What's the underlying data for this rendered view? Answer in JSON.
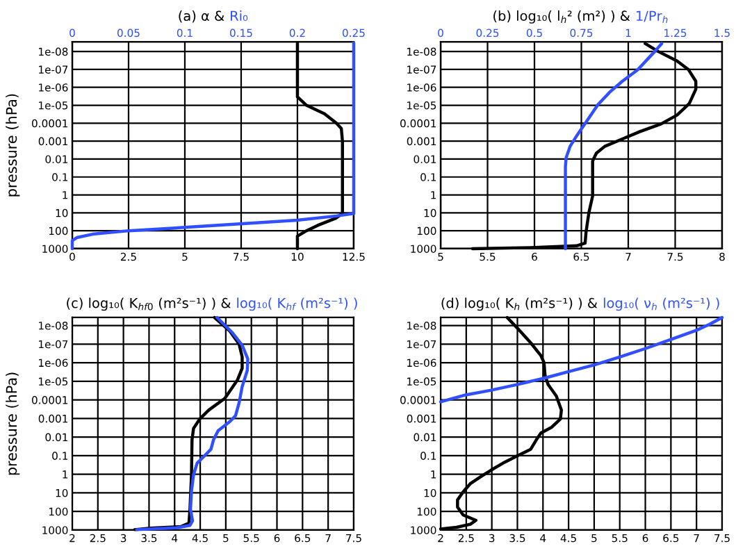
{
  "chart_data": [
    {
      "type": "line",
      "title": "(a) α &",
      "ylabel": "pressure (hPa)",
      "log": "y",
      "grid": true,
      "xlim": [
        0,
        12.5
      ],
      "xticks": [
        0,
        2.5,
        5,
        7.5,
        10,
        12.5
      ],
      "x2lim": [
        0,
        0.25
      ],
      "x2ticks": [
        0,
        0.05,
        0.1,
        0.15,
        0.2,
        0.25
      ],
      "ylim": [
        1000,
        2.9e-09
      ],
      "yticks": [
        {
          "value": 1e-08,
          "label": "1e-08"
        },
        {
          "value": 1e-07,
          "label": "1e-07"
        },
        {
          "value": 1e-06,
          "label": "1e-06"
        },
        {
          "value": 1e-05,
          "label": "1e-05"
        },
        {
          "value": 0.0001,
          "label": "0.0001"
        },
        {
          "value": 0.001,
          "label": "0.001"
        },
        {
          "value": 0.01,
          "label": "0.01"
        },
        {
          "value": 0.1,
          "label": "0.1"
        },
        {
          "value": 1,
          "label": "1"
        },
        {
          "value": 10,
          "label": "10"
        },
        {
          "value": 100,
          "label": "100"
        },
        {
          "value": 1000,
          "label": "1000"
        }
      ],
      "series": [
        {
          "color": "#000000",
          "x": [
            10,
            10,
            10.4,
            11.2,
            11.73,
            11.95,
            12,
            12,
            11.95,
            11.7,
            10.9,
            10.4,
            10,
            10
          ],
          "values": [
            3.3e-09,
            3.4e-06,
            1e-05,
            3e-05,
            0.0001,
            0.0002,
            0.001,
            10,
            12,
            20,
            50,
            100,
            200,
            1000
          ]
        },
        {
          "name": "Ri₀",
          "color": "#3050ff",
          "axis": "x2",
          "x": [
            0.25,
            0.25,
            0.2346,
            0.1995,
            0.1,
            0.05,
            0.018,
            0.004,
            0,
            0
          ],
          "values": [
            3.3e-09,
            11,
            15,
            26,
            65,
            100,
            155,
            240,
            360,
            1000
          ]
        }
      ]
    },
    {
      "type": "line",
      "title": "(b) log₁₀( l$_{h}$² (m²) ) &",
      "log": "y",
      "grid": true,
      "xlim": [
        5,
        8
      ],
      "xticks": [
        5,
        5.5,
        6,
        6.5,
        7,
        7.5,
        8
      ],
      "x2lim": [
        0,
        1.5
      ],
      "x2ticks": [
        0,
        0.25,
        0.5,
        0.75,
        1,
        1.25,
        1.5
      ],
      "ylim": [
        1000,
        2.9e-09
      ],
      "yticks": [
        {
          "value": 1e-08,
          "label": "1e-08"
        },
        {
          "value": 1e-07,
          "label": "1e-07"
        },
        {
          "value": 1e-06,
          "label": "1e-06"
        },
        {
          "value": 1e-05,
          "label": "1e-05"
        },
        {
          "value": 0.0001,
          "label": "0.0001"
        },
        {
          "value": 0.001,
          "label": "0.001"
        },
        {
          "value": 0.01,
          "label": "0.01"
        },
        {
          "value": 0.1,
          "label": "0.1"
        },
        {
          "value": 1,
          "label": "1"
        },
        {
          "value": 10,
          "label": "10"
        },
        {
          "value": 100,
          "label": "100"
        },
        {
          "value": 1000,
          "label": "1000"
        }
      ],
      "series": [
        {
          "color": "#000000",
          "x": [
            7.18,
            7.32,
            7.52,
            7.64,
            7.72,
            7.72,
            7.65,
            7.52,
            7.35,
            7.12,
            6.92,
            6.75,
            6.66,
            6.62,
            6.62,
            6.62,
            6.58,
            6.55,
            6.54,
            6.45,
            5.96,
            5.34
          ],
          "values": [
            3.6e-09,
            1e-08,
            3.4e-08,
            1e-07,
            4.6e-07,
            1.26e-06,
            8.1e-06,
            3.5e-05,
            0.00011,
            0.0003,
            0.00083,
            0.00195,
            0.0047,
            0.0129,
            0.112,
            1.15,
            10,
            115,
            490,
            690,
            870,
            1000
          ]
        },
        {
          "name": "1/Pr$_{h}$",
          "color": "#3050ff",
          "axis": "x2",
          "x": [
            1.178,
            1.141,
            1.049,
            0.968,
            0.9,
            0.838,
            0.777,
            0.727,
            0.69,
            0.669,
            0.665,
            0.665
          ],
          "values": [
            3.6e-09,
            1e-08,
            1.07e-07,
            4.6e-07,
            1.9e-06,
            9.3e-06,
            8.1e-05,
            0.00047,
            0.00195,
            0.0083,
            0.026,
            1000
          ]
        }
      ]
    },
    {
      "type": "line",
      "title": "(c) log₁₀( K$_{hf0}$ (m²s⁻¹) ) &",
      "ylabel": "pressure (hPa)",
      "log": "y",
      "grid": true,
      "xlim": [
        2,
        7.5
      ],
      "xticks": [
        2,
        2.5,
        3,
        3.5,
        4,
        4.5,
        5,
        5.5,
        6,
        6.5,
        7,
        7.5
      ],
      "ylim": [
        1000,
        3.7e-09
      ],
      "yticks": [
        {
          "value": 1e-08,
          "label": "1e-08"
        },
        {
          "value": 1e-07,
          "label": "1e-07"
        },
        {
          "value": 1e-06,
          "label": "1e-06"
        },
        {
          "value": 1e-05,
          "label": "1e-05"
        },
        {
          "value": 0.0001,
          "label": "0.0001"
        },
        {
          "value": 0.001,
          "label": "0.001"
        },
        {
          "value": 0.01,
          "label": "0.01"
        },
        {
          "value": 0.1,
          "label": "0.1"
        },
        {
          "value": 1,
          "label": "1"
        },
        {
          "value": 10,
          "label": "10"
        },
        {
          "value": 100,
          "label": "100"
        },
        {
          "value": 1000,
          "label": "1000"
        }
      ],
      "series": [
        {
          "color": "#000000",
          "x": [
            4.78,
            5.08,
            5.26,
            5.32,
            5.32,
            5.23,
            4.98,
            4.67,
            4.49,
            4.37,
            4.34,
            4.33,
            4.3,
            4.28,
            4.12,
            3.53,
            3.22
          ],
          "values": [
            3.7e-09,
            2e-08,
            1e-07,
            4.8e-07,
            2e-06,
            8.3e-06,
            8.3e-05,
            0.00035,
            0.00107,
            0.0034,
            0.014,
            1.05,
            76,
            430,
            650,
            790,
            950
          ]
        },
        {
          "name": "log₁₀( K$_{hf}$ (m²s⁻¹) )",
          "color": "#3050ff",
          "x": [
            4.83,
            5.12,
            5.32,
            5.43,
            5.42,
            5.32,
            5.26,
            5.19,
            5.08,
            4.85,
            4.76,
            4.71,
            4.58,
            4.44,
            4.37,
            4.33,
            4.31,
            4.35,
            4.3,
            4.03,
            3.26
          ],
          "values": [
            3.7e-09,
            2.3e-08,
            1.15e-07,
            6.3e-07,
            2.6e-06,
            1.95e-05,
            0.000145,
            0.00071,
            0.00145,
            0.0046,
            0.014,
            0.045,
            0.105,
            0.25,
            1.05,
            7.8,
            76,
            316,
            560,
            760,
            950
          ]
        }
      ]
    },
    {
      "type": "line",
      "title": "(d) log₁₀( K$_{h}$ (m²s⁻¹) ) &",
      "log": "y",
      "grid": true,
      "xlim": [
        2,
        7.5
      ],
      "xticks": [
        2,
        2.5,
        3,
        3.5,
        4,
        4.5,
        5,
        5.5,
        6,
        6.5,
        7,
        7.5
      ],
      "ylim": [
        1000,
        3.7e-09
      ],
      "yticks": [
        {
          "value": 1e-08,
          "label": "1e-08"
        },
        {
          "value": 1e-07,
          "label": "1e-07"
        },
        {
          "value": 1e-06,
          "label": "1e-06"
        },
        {
          "value": 1e-05,
          "label": "1e-05"
        },
        {
          "value": 0.0001,
          "label": "0.0001"
        },
        {
          "value": 0.001,
          "label": "0.001"
        },
        {
          "value": 0.01,
          "label": "0.01"
        },
        {
          "value": 0.1,
          "label": "0.1"
        },
        {
          "value": 1,
          "label": "1"
        },
        {
          "value": 10,
          "label": "10"
        },
        {
          "value": 100,
          "label": "100"
        },
        {
          "value": 1000,
          "label": "1000"
        }
      ],
      "series": [
        {
          "color": "#000000",
          "x": [
            3.3,
            3.49,
            3.76,
            3.96,
            4.02,
            4.04,
            4.1,
            4.26,
            4.36,
            4.34,
            4.17,
            3.96,
            3.87,
            3.76,
            3.49,
            3.22,
            2.99,
            2.81,
            2.58,
            2.44,
            2.33,
            2.33,
            2.44,
            2.69,
            2.58,
            2.31,
            2.0
          ],
          "values": [
            3.7e-09,
            1.3e-08,
            8.5e-08,
            4.2e-07,
            9.8e-07,
            4.7e-06,
            1.5e-05,
            6.2e-05,
            0.00035,
            0.00107,
            0.00295,
            0.006,
            0.014,
            0.045,
            0.105,
            0.25,
            0.59,
            1.2,
            3.2,
            8.9,
            24,
            58,
            155,
            300,
            490,
            710,
            870
          ]
        },
        {
          "name": "log₁₀( ν$_{h}$ (m²s⁻¹) )",
          "color": "#3050ff",
          "x": [
            2.0,
            2.49,
            2.99,
            3.49,
            3.99,
            4.49,
            5.01,
            5.51,
            6.0,
            6.5,
            7.0,
            7.25,
            7.5
          ],
          "values": [
            0.000126,
            5.4e-05,
            3e-05,
            1.5e-05,
            7.2e-06,
            3.1e-06,
            1.3e-06,
            4.8e-07,
            1.74e-07,
            5.6e-08,
            1.8e-08,
            8.7e-09,
            3.7e-09
          ]
        }
      ]
    }
  ]
}
